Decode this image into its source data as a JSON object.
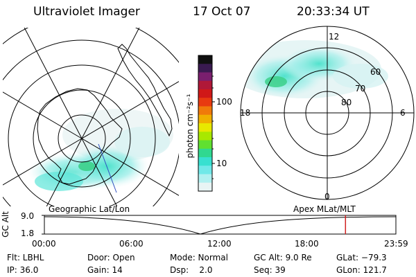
{
  "header": {
    "instrument": "Ultraviolet Imager",
    "date": "17 Oct 07",
    "time": "20:33:34 UT"
  },
  "colorbar": {
    "unit_label": "photon cm⁻²s⁻¹",
    "ticks": [
      "100",
      "10"
    ],
    "colors": [
      "#101010",
      "#3a1a50",
      "#7a1f6e",
      "#b01838",
      "#d01818",
      "#e83a10",
      "#f07a0a",
      "#f0b000",
      "#e8e800",
      "#a8e800",
      "#60e030",
      "#30d890",
      "#38e0d0",
      "#70e8e8",
      "#b0f0f0",
      "#e8f4f4"
    ]
  },
  "left_map": {
    "caption": "Geographic Lat/Lon"
  },
  "right_map": {
    "caption": "Apex MLat/MLT",
    "mlt_labels": [
      "12",
      "18",
      "6",
      "0"
    ],
    "lat_labels": [
      "60",
      "70",
      "80"
    ]
  },
  "timeline": {
    "ylabel": "GC Alt",
    "yticks": [
      "9.0",
      "1.8"
    ],
    "xticks": [
      "00:00",
      "06:00",
      "12:00",
      "18:00",
      "23:59"
    ],
    "current_time_hours": 20.56
  },
  "status": {
    "flt": "Flt: LBHL",
    "ip": "IP: 36.0",
    "door": "Door: Open",
    "gain": "Gain: 14",
    "mode": "Mode: Normal",
    "dsp": "Dsp:    2.0",
    "gc_alt": "GC Alt: 9.0 Re",
    "seq": "Seq: 39",
    "glat": "GLat: −79.3",
    "glon": "GLon: 121.7"
  }
}
